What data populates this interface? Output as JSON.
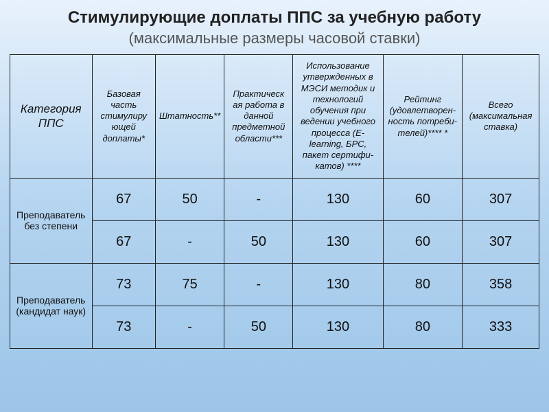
{
  "title": "Стимулирующие доплаты ППС за учебную работу",
  "subtitle": "(максимальные размеры часовой ставки)",
  "table": {
    "columns": [
      "Категория ППС",
      "Базовая часть стимулиру ющей доплаты*",
      "Штатность**",
      "Практическ ая работа в данной предметной области***",
      "Использование утвержденных в МЭСИ методик и технологий обучения при ведении учебного процесса (E-learning, БРС, пакет сертифи-катов) ****",
      "Рейтинг (удовлетворен-ность потреби-телей)**** *",
      "Всего (максимальная ставка)"
    ],
    "groups": [
      {
        "label": "Преподаватель без степени",
        "rows": [
          [
            "67",
            "50",
            "-",
            "130",
            "60",
            "307"
          ],
          [
            "67",
            "-",
            "50",
            "130",
            "60",
            "307"
          ]
        ]
      },
      {
        "label": "Преподаватель (кандидат наук)",
        "rows": [
          [
            "73",
            "75",
            "-",
            "130",
            "80",
            "358"
          ],
          [
            "73",
            "-",
            "50",
            "130",
            "80",
            "333"
          ]
        ]
      }
    ]
  },
  "style": {
    "background_gradient": [
      "#e8f2fc",
      "#b4d4f0",
      "#9cc5e8"
    ],
    "title_color": "#222",
    "subtitle_color": "#555",
    "border_color": "#222",
    "title_fontsize": 24,
    "subtitle_fontsize": 22,
    "header_fontsize": 13,
    "cell_fontsize": 20,
    "rowheader_fontsize": 14,
    "header_style": "italic",
    "col_widths_pct": [
      15.5,
      12,
      13,
      13,
      17,
      15,
      14.5
    ]
  }
}
